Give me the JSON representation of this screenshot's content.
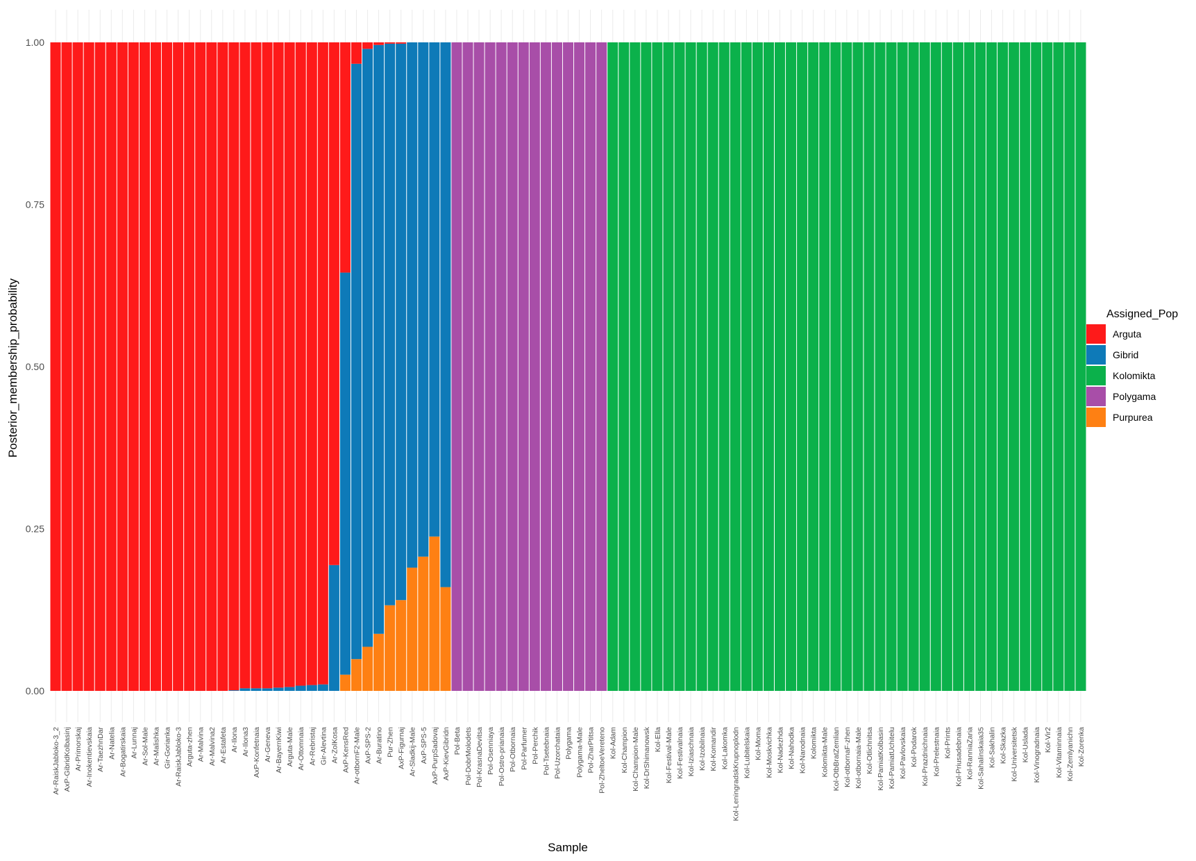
{
  "chart_data": {
    "type": "bar",
    "stacked": true,
    "xlabel": "Sample",
    "ylabel": "Posterior_membership_probability",
    "ylim": [
      0,
      1
    ],
    "y_ticks": [
      "0.00",
      "0.25",
      "0.50",
      "0.75",
      "1.00"
    ],
    "y_tick_values": [
      0,
      0.25,
      0.5,
      0.75,
      1.0
    ],
    "grid": true,
    "legend": {
      "title": "Assigned_Pop",
      "position": "right",
      "items": [
        "Arguta",
        "Gibrid",
        "Kolomikta",
        "Polygama",
        "Purpurea"
      ]
    },
    "colors": {
      "Arguta": "#fe1a1a",
      "Gibrid": "#0e7ab8",
      "Kolomikta": "#0bb14b",
      "Polygama": "#a84ea8",
      "Purpurea": "#fe8013"
    },
    "stack_order": [
      "Purpurea",
      "Polygama",
      "Kolomikta",
      "Gibrid",
      "Arguta"
    ],
    "categories": [
      "Ar-RaiskJabloko-3_2",
      "AxP-GibridKolbasinj",
      "Ar-Primorskaj",
      "Ar-Inokentievskaia",
      "Ar-TaezhnDar",
      "Ar-Natelia",
      "Ar-Bogatirskaia",
      "Ar-Lunnaj",
      "Ar-Sol-Male",
      "Ar-Malishka",
      "Gir-Gorianka",
      "Ar-RaiskJabloko-3",
      "Arguta-zhen",
      "Ar-Malvina",
      "Ar-Malvina2",
      "Ar-Estafeta",
      "Ar-Ilona",
      "Ar-Ilona3",
      "AxP-Konfetnaia",
      "Ar-Geneva",
      "Ar-BayernKiwi",
      "Arguta-Male",
      "Ar-Ottomnaia",
      "Ar-Rebristaj",
      "Gir-Alevtina",
      "Ar-ZolKosa",
      "AxP-KensRed",
      "Ar-otbornF2-Male",
      "AxP-SPS-2",
      "Ar-Buratino",
      "Pur-Zhen",
      "AxP-Figurnaj",
      "Ar-Sladkij-Male",
      "AxP-SPS-5",
      "AxP-PurpSadovaj",
      "AxP-KievGibridn",
      "Pol-Beta",
      "Pol-DobrMolodets",
      "Pol-KrasnaDevitsa",
      "Pol-Osenniaya",
      "Pol-Ostro-prianaia",
      "Pol-Otbornaia",
      "Pol-Parfumer",
      "Pol-Perchik",
      "Pol-Tsetebnaia",
      "Pol-Uzorchataia",
      "Polygama",
      "Polygama-Male",
      "Pol-ZharPtitsa",
      "Pol-ZheltoeVereteno",
      "Kol-Adam",
      "Kol-Champion",
      "Kol-Champion-Male",
      "Kol-DrShimanowsk",
      "Kol-Ella",
      "Kol-Festival-Male",
      "Kol-Festivalnaia",
      "Kol-Iziaschnaia",
      "Kol-Izobilnaia",
      "Kol-Komandir",
      "Kol-Lakomka",
      "Kol-LeningradskKrupnoplodn",
      "Kol-Lubitelskaia",
      "Kol-Moma",
      "Kol-Moskvichka",
      "Kol-Nadezhda",
      "Kol-Nahodka",
      "Kol-Narodnaia",
      "Kolomikta",
      "Kolomikta-Male",
      "Kol-OtbBratZemlian",
      "Kol-otbornaF-zhen",
      "Kol-otbornaia-Male",
      "Kol-Otlichnitsa",
      "Kol-PamiatKolbasin",
      "Kol-PamiatUchitelu",
      "Kol-Pavlovskaia",
      "Kol-Podarok",
      "Kol-Prazdnichnaia",
      "Kol-Prelestnaia",
      "Kol-Prints",
      "Kol-Priusadebnaia",
      "Kol-RanniaZaria",
      "Kol-Sahalinskaia35",
      "Kol-Sakhalin",
      "Kol-Skazka",
      "Kol-Universitetsk",
      "Kol-Uslada",
      "Kol-Vinogradnaia",
      "Kol-Vir2",
      "Kol-Vitaminnaia",
      "Kol-Zemlyanichn",
      "Kol-Zorenka"
    ],
    "series": [
      {
        "name": "Arguta",
        "values": [
          1,
          1,
          1,
          1,
          1,
          1,
          1,
          1,
          1,
          1,
          1,
          1,
          1,
          1,
          1,
          1,
          0.999,
          0.996,
          0.996,
          0.996,
          0.995,
          0.994,
          0.992,
          0.991,
          0.99,
          0.806,
          0.355,
          0.033,
          0.01,
          0.004,
          0.002,
          0.002,
          0,
          0,
          0,
          0,
          0,
          0,
          0,
          0,
          0,
          0,
          0,
          0,
          0,
          0,
          0,
          0,
          0,
          0,
          0,
          0,
          0,
          0,
          0,
          0,
          0,
          0,
          0,
          0,
          0,
          0,
          0,
          0,
          0,
          0,
          0,
          0,
          0,
          0,
          0,
          0,
          0,
          0,
          0,
          0,
          0,
          0,
          0,
          0,
          0,
          0,
          0,
          0,
          0,
          0,
          0,
          0,
          0,
          0,
          0,
          0,
          0
        ]
      },
      {
        "name": "Gibrid",
        "values": [
          0,
          0,
          0,
          0,
          0,
          0,
          0,
          0,
          0,
          0,
          0,
          0,
          0,
          0,
          0,
          0,
          0.001,
          0.004,
          0.004,
          0.004,
          0.005,
          0.006,
          0.008,
          0.009,
          0.01,
          0.194,
          0.62,
          0.918,
          0.922,
          0.908,
          0.866,
          0.858,
          0.81,
          0.793,
          0.762,
          0.84,
          0,
          0,
          0,
          0,
          0,
          0,
          0,
          0,
          0,
          0,
          0,
          0,
          0,
          0,
          0,
          0,
          0,
          0,
          0,
          0,
          0,
          0,
          0,
          0,
          0,
          0,
          0,
          0,
          0,
          0,
          0,
          0,
          0,
          0,
          0,
          0,
          0,
          0,
          0,
          0,
          0,
          0,
          0,
          0,
          0,
          0,
          0,
          0,
          0,
          0,
          0,
          0,
          0,
          0,
          0,
          0,
          0
        ]
      },
      {
        "name": "Purpurea",
        "values": [
          0,
          0,
          0,
          0,
          0,
          0,
          0,
          0,
          0,
          0,
          0,
          0,
          0,
          0,
          0,
          0,
          0,
          0,
          0,
          0,
          0,
          0,
          0,
          0,
          0,
          0,
          0.025,
          0.049,
          0.068,
          0.088,
          0.132,
          0.14,
          0.19,
          0.207,
          0.238,
          0.16,
          0,
          0,
          0,
          0,
          0,
          0,
          0,
          0,
          0,
          0,
          0,
          0,
          0,
          0,
          0,
          0,
          0,
          0,
          0,
          0,
          0,
          0,
          0,
          0,
          0,
          0,
          0,
          0,
          0,
          0,
          0,
          0,
          0,
          0,
          0,
          0,
          0,
          0,
          0,
          0,
          0,
          0,
          0,
          0,
          0,
          0,
          0,
          0,
          0,
          0,
          0,
          0,
          0,
          0,
          0,
          0,
          0
        ]
      },
      {
        "name": "Polygama",
        "values": [
          0,
          0,
          0,
          0,
          0,
          0,
          0,
          0,
          0,
          0,
          0,
          0,
          0,
          0,
          0,
          0,
          0,
          0,
          0,
          0,
          0,
          0,
          0,
          0,
          0,
          0,
          0,
          0,
          0,
          0,
          0,
          0,
          0,
          0,
          0,
          0,
          1,
          1,
          1,
          1,
          1,
          1,
          1,
          1,
          1,
          1,
          1,
          1,
          1,
          1,
          0,
          0,
          0,
          0,
          0,
          0,
          0,
          0,
          0,
          0,
          0,
          0,
          0,
          0,
          0,
          0,
          0,
          0,
          0,
          0,
          0,
          0,
          0,
          0,
          0,
          0,
          0,
          0,
          0,
          0,
          0,
          0,
          0,
          0,
          0,
          0,
          0,
          0,
          0,
          0,
          0,
          0,
          0
        ]
      },
      {
        "name": "Kolomikta",
        "values": [
          0,
          0,
          0,
          0,
          0,
          0,
          0,
          0,
          0,
          0,
          0,
          0,
          0,
          0,
          0,
          0,
          0,
          0,
          0,
          0,
          0,
          0,
          0,
          0,
          0,
          0,
          0,
          0,
          0,
          0,
          0,
          0,
          0,
          0,
          0,
          0,
          0,
          0,
          0,
          0,
          0,
          0,
          0,
          0,
          0,
          0,
          0,
          0,
          0,
          0,
          1,
          1,
          1,
          1,
          1,
          1,
          1,
          1,
          1,
          1,
          1,
          1,
          1,
          1,
          1,
          1,
          1,
          1,
          1,
          1,
          1,
          1,
          1,
          1,
          1,
          1,
          1,
          1,
          1,
          1,
          1,
          1,
          1,
          1,
          1,
          1,
          1,
          1,
          1,
          1,
          1,
          1,
          1
        ]
      }
    ]
  }
}
